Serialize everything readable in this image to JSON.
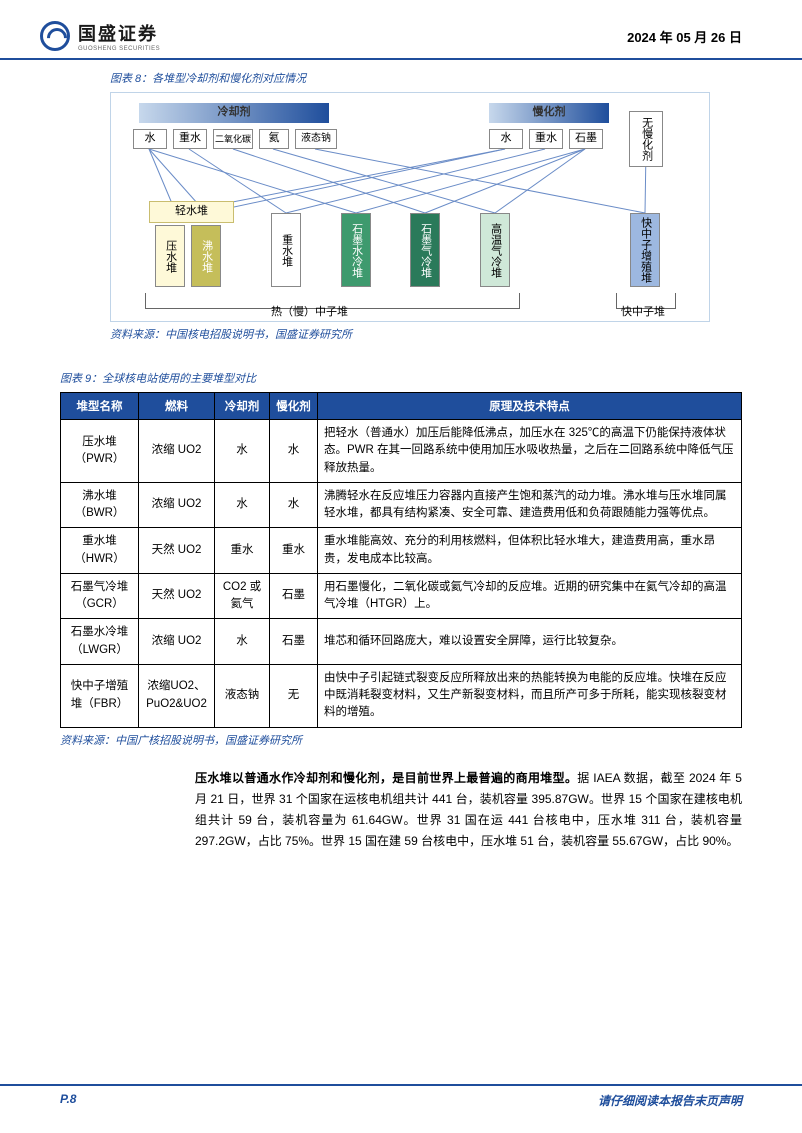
{
  "header": {
    "logo_main": "国盛证券",
    "logo_sub": "GUOSHENG SECURITIES",
    "date": "2024 年 05 月 26 日"
  },
  "figure8": {
    "caption": "图表 8：各堆型冷却剂和慢化剂对应情况",
    "source": "资料来源：中国核电招股说明书，国盛证券研究所",
    "top_groups": {
      "coolant": "冷却剂",
      "moderator": "慢化剂",
      "none": "无慢化剂"
    },
    "coolant_items": [
      "水",
      "重水",
      "二氧化碳",
      "氦",
      "液态钠"
    ],
    "moderator_items": [
      "水",
      "重水",
      "石墨"
    ],
    "group_light": "轻水堆",
    "reactors": {
      "pwr": "压水堆",
      "bwr": "沸水堆",
      "hwr": "重水堆",
      "lwgr": "石墨水冷堆",
      "gcr": "石墨气冷堆",
      "htgr": "高温气冷堆",
      "fbr": "快中子增殖堆"
    },
    "bottom_thermal": "热（慢）中子堆",
    "bottom_fast": "快中子堆",
    "colors": {
      "header_grad_start": "#c7d8ec",
      "header_grad_end": "#1f4e9c",
      "item_fill": "#ffffff",
      "item_border": "#888888",
      "light_group_fill": "#fef9d8",
      "light_group_border": "#c9bd6f",
      "pwr_fill": "#fef9d8",
      "bwr_fill": "#c5be5a",
      "hwr_fill": "#ffffff",
      "lwgr_fill": "#3e9a6e",
      "gcr_fill": "#2a7a5a",
      "htgr_fill": "#cfe8d8",
      "fbr_fill": "#9db8e0",
      "line_color": "#6a8cc7"
    }
  },
  "figure9": {
    "caption": "图表 9：全球核电站使用的主要堆型对比",
    "source": "资料来源：中国广核招股说明书，国盛证券研究所",
    "headers": [
      "堆型名称",
      "燃料",
      "冷却剂",
      "慢化剂",
      "原理及技术特点"
    ],
    "rows": [
      {
        "name": "压水堆（PWR）",
        "fuel": "浓缩 UO2",
        "coolant": "水",
        "moderator": "水",
        "desc": "把轻水（普通水）加压后能降低沸点，加压水在 325℃的高温下仍能保持液体状态。PWR 在其一回路系统中使用加压水吸收热量，之后在二回路系统中降低气压释放热量。"
      },
      {
        "name": "沸水堆（BWR）",
        "fuel": "浓缩 UO2",
        "coolant": "水",
        "moderator": "水",
        "desc": "沸腾轻水在反应堆压力容器内直接产生饱和蒸汽的动力堆。沸水堆与压水堆同属轻水堆，都具有结构紧凑、安全可靠、建造费用低和负荷跟随能力强等优点。"
      },
      {
        "name": "重水堆（HWR）",
        "fuel": "天然 UO2",
        "coolant": "重水",
        "moderator": "重水",
        "desc": "重水堆能高效、充分的利用核燃料，但体积比轻水堆大，建造费用高，重水昂贵，发电成本比较高。"
      },
      {
        "name": "石墨气冷堆（GCR）",
        "fuel": "天然 UO2",
        "coolant": "CO2 或氦气",
        "moderator": "石墨",
        "desc": "用石墨慢化，二氧化碳或氦气冷却的反应堆。近期的研究集中在氦气冷却的高温气冷堆（HTGR）上。"
      },
      {
        "name": "石墨水冷堆（LWGR）",
        "fuel": "浓缩 UO2",
        "coolant": "水",
        "moderator": "石墨",
        "desc": "堆芯和循环回路庞大，难以设置安全屏障，运行比较复杂。"
      },
      {
        "name": "快中子增殖堆（FBR）",
        "fuel": "浓缩UO2、PuO2&UO2",
        "coolant": "液态钠",
        "moderator": "无",
        "desc": "由快中子引起链式裂变反应所释放出来的热能转换为电能的反应堆。快堆在反应中既消耗裂变材料，又生产新裂变材料，而且所产可多于所耗，能实现核裂变材料的增殖。"
      }
    ]
  },
  "body": {
    "lead_bold": "压水堆以普通水作冷却剂和慢化剂，是目前世界上最普遍的商用堆型。",
    "rest": "据 IAEA 数据，截至 2024 年 5 月 21 日，世界 31 个国家在运核电机组共计 441 台，装机容量 395.87GW。世界 15 个国家在建核电机组共计 59 台，装机容量为 61.64GW。世界 31 国在运 441 台核电中，压水堆 311 台，装机容量 297.2GW，占比 75%。世界 15 国在建 59 台核电中，压水堆 51 台，装机容量 55.67GW，占比 90%。"
  },
  "footer": {
    "page": "P.8",
    "disclaimer": "请仔细阅读本报告末页声明"
  }
}
